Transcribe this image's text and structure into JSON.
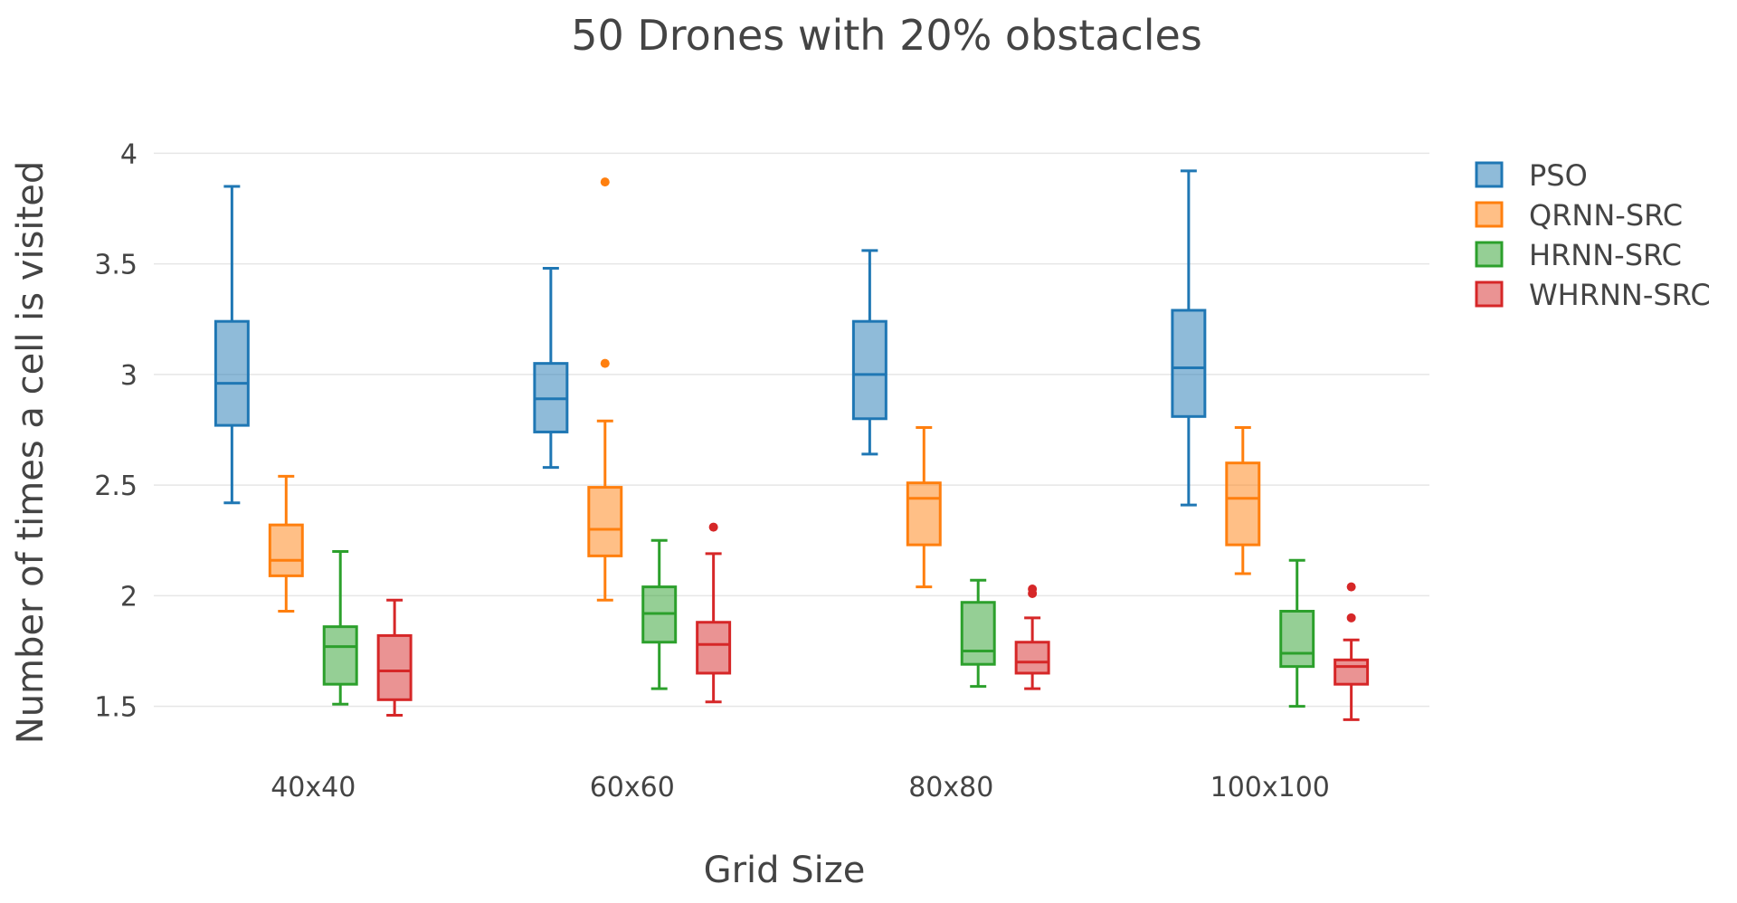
{
  "chart_data": {
    "type": "box",
    "title": "50 Drones with 20% obstacles",
    "xlabel": "Grid Size",
    "ylabel": "Number of times a cell is visited",
    "ylim": [
      1.38,
      4.12
    ],
    "yticks": [
      "1.5",
      "2",
      "2.5",
      "3",
      "3.5",
      "4"
    ],
    "categories": [
      "40x40",
      "60x60",
      "80x80",
      "100x100"
    ],
    "legend_position": "top-right",
    "series": [
      {
        "name": "PSO",
        "color": "#1f77b4",
        "boxes": [
          {
            "min": 2.42,
            "q1": 2.77,
            "median": 2.96,
            "q3": 3.24,
            "max": 3.85,
            "outliers": []
          },
          {
            "min": 2.58,
            "q1": 2.74,
            "median": 2.89,
            "q3": 3.05,
            "max": 3.48,
            "outliers": []
          },
          {
            "min": 2.64,
            "q1": 2.8,
            "median": 3.0,
            "q3": 3.24,
            "max": 3.56,
            "outliers": []
          },
          {
            "min": 2.41,
            "q1": 2.81,
            "median": 3.03,
            "q3": 3.29,
            "max": 3.92,
            "outliers": []
          }
        ]
      },
      {
        "name": "QRNN-SRC",
        "color": "#ff7f0e",
        "boxes": [
          {
            "min": 1.93,
            "q1": 2.09,
            "median": 2.16,
            "q3": 2.32,
            "max": 2.54,
            "outliers": []
          },
          {
            "min": 1.98,
            "q1": 2.18,
            "median": 2.3,
            "q3": 2.49,
            "max": 2.79,
            "outliers": [
              3.05,
              3.87
            ]
          },
          {
            "min": 2.04,
            "q1": 2.23,
            "median": 2.44,
            "q3": 2.51,
            "max": 2.76,
            "outliers": []
          },
          {
            "min": 2.1,
            "q1": 2.23,
            "median": 2.44,
            "q3": 2.6,
            "max": 2.76,
            "outliers": []
          }
        ]
      },
      {
        "name": "HRNN-SRC",
        "color": "#2ca02c",
        "boxes": [
          {
            "min": 1.51,
            "q1": 1.6,
            "median": 1.77,
            "q3": 1.86,
            "max": 2.2,
            "outliers": []
          },
          {
            "min": 1.58,
            "q1": 1.79,
            "median": 1.92,
            "q3": 2.04,
            "max": 2.25,
            "outliers": []
          },
          {
            "min": 1.59,
            "q1": 1.69,
            "median": 1.75,
            "q3": 1.97,
            "max": 2.07,
            "outliers": []
          },
          {
            "min": 1.5,
            "q1": 1.68,
            "median": 1.74,
            "q3": 1.93,
            "max": 2.16,
            "outliers": []
          }
        ]
      },
      {
        "name": "WHRNN-SRC",
        "color": "#d62728",
        "boxes": [
          {
            "min": 1.46,
            "q1": 1.53,
            "median": 1.66,
            "q3": 1.82,
            "max": 1.98,
            "outliers": []
          },
          {
            "min": 1.52,
            "q1": 1.65,
            "median": 1.78,
            "q3": 1.88,
            "max": 2.19,
            "outliers": [
              2.31
            ]
          },
          {
            "min": 1.58,
            "q1": 1.65,
            "median": 1.7,
            "q3": 1.79,
            "max": 1.9,
            "outliers": [
              2.01,
              2.03
            ]
          },
          {
            "min": 1.44,
            "q1": 1.6,
            "median": 1.68,
            "q3": 1.71,
            "max": 1.8,
            "outliers": [
              1.9,
              2.04
            ]
          }
        ]
      }
    ]
  }
}
